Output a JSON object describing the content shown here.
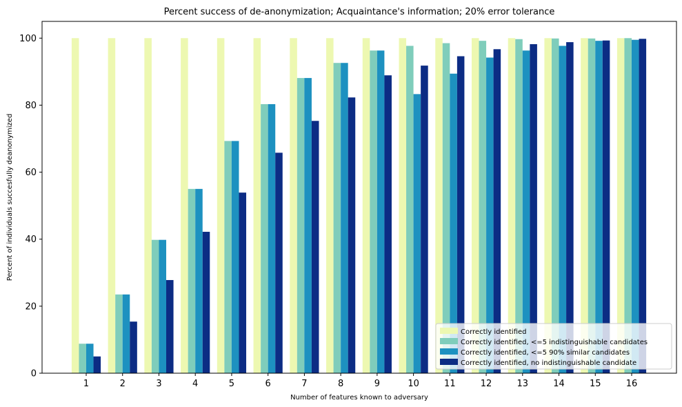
{
  "chart_data": {
    "type": "bar",
    "title": "Percent success of de-anonymization; Acquaintance's information; 20% error tolerance",
    "xlabel": "Number of features known to adversary",
    "ylabel": "Percent of individuals succesfully deanonymized",
    "categories": [
      "1",
      "2",
      "3",
      "4",
      "5",
      "6",
      "7",
      "8",
      "9",
      "10",
      "11",
      "12",
      "13",
      "14",
      "15",
      "16"
    ],
    "ylim": [
      0,
      105
    ],
    "yticks": [
      0,
      20,
      40,
      60,
      80,
      100
    ],
    "grid": false,
    "legend_position": "bottom-right",
    "series": [
      {
        "name": "Correctly identified",
        "color": "#edf8b1",
        "values": [
          100,
          100,
          100,
          100,
          100,
          100,
          100,
          100,
          100,
          100,
          100,
          100,
          100,
          100,
          100,
          100
        ]
      },
      {
        "name": "Correctly identified, <=5 indistinguishable candidates",
        "color": "#7fcdbb",
        "values": [
          8.8,
          23.5,
          39.8,
          55.0,
          69.3,
          80.3,
          88.1,
          92.6,
          96.3,
          97.7,
          98.5,
          99.2,
          99.7,
          99.9,
          99.9,
          100
        ]
      },
      {
        "name": "Correctly identified, <=5 90% similar candidates",
        "color": "#1d91c0",
        "values": [
          8.8,
          23.5,
          39.8,
          55.0,
          69.3,
          80.3,
          88.1,
          92.6,
          96.3,
          83.3,
          89.4,
          94.2,
          96.3,
          97.7,
          99.2,
          99.5
        ]
      },
      {
        "name": "Correctly identified, no indistinguishable candidate",
        "color": "#0c2c84",
        "values": [
          5.0,
          15.4,
          27.8,
          42.2,
          53.9,
          65.8,
          75.3,
          82.3,
          88.9,
          91.8,
          94.6,
          96.7,
          98.2,
          98.8,
          99.3,
          99.8
        ]
      }
    ]
  }
}
